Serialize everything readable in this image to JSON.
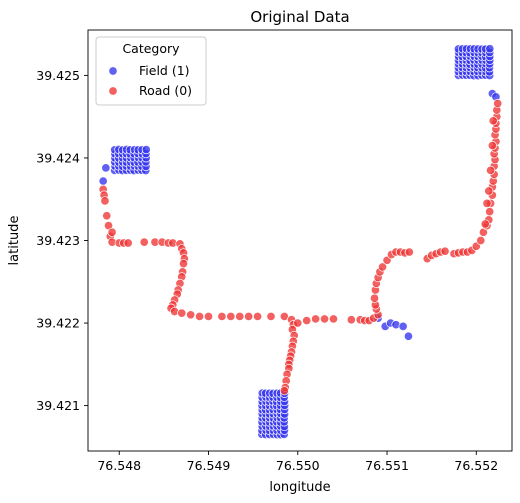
{
  "chart_data": {
    "type": "scatter",
    "title": "Original Data",
    "xlabel": "longitude",
    "ylabel": "latitude",
    "xlim": [
      76.54765,
      76.5524
    ],
    "ylim": [
      39.42045,
      39.42555
    ],
    "xticks": [
      76.548,
      76.549,
      76.55,
      76.551,
      76.552
    ],
    "xtick_labels": [
      "76.548",
      "76.549",
      "76.550",
      "76.551",
      "76.552"
    ],
    "yticks": [
      39.421,
      39.422,
      39.423,
      39.424,
      39.425
    ],
    "ytick_labels": [
      "39.421",
      "39.422",
      "39.423",
      "39.424",
      "39.425"
    ],
    "grid": false,
    "legend": {
      "title": "Category",
      "placement": "top-left",
      "entries": [
        {
          "label": "Field (1)",
          "color": "#3333ee"
        },
        {
          "label": "Road (0)",
          "color": "#ee3333"
        }
      ]
    },
    "series": [
      {
        "name": "Field (1)",
        "color": "#3333ee",
        "clusters": [
          {
            "x_range": [
              76.5496,
              76.54985
            ],
            "y_range": [
              39.42065,
              39.42115
            ]
          },
          {
            "x_range": [
              76.54795,
              76.5483
            ],
            "y_range": [
              39.42385,
              39.4241
            ]
          },
          {
            "x_range": [
              76.5518,
              76.55215
            ],
            "y_range": [
              39.425,
              39.42532
            ]
          }
        ],
        "points": [
          [
            76.54785,
            39.42388
          ],
          [
            76.54782,
            39.42372
          ],
          [
            76.5509,
            39.42206
          ],
          [
            76.55098,
            39.42196
          ],
          [
            76.55104,
            39.422
          ],
          [
            76.5511,
            39.42198
          ],
          [
            76.55118,
            39.42196
          ],
          [
            76.55124,
            39.42184
          ],
          [
            76.55218,
            39.42478
          ],
          [
            76.55222,
            39.42474
          ]
        ]
      },
      {
        "name": "Road (0)",
        "color": "#ee3333",
        "points": [
          [
            76.54782,
            39.42362
          ],
          [
            76.54783,
            39.42355
          ],
          [
            76.54784,
            39.42348
          ],
          [
            76.54786,
            39.4233
          ],
          [
            76.54788,
            39.42318
          ],
          [
            76.5479,
            39.42305
          ],
          [
            76.54792,
            39.4231
          ],
          [
            76.54792,
            39.42298
          ],
          [
            76.548,
            39.42297
          ],
          [
            76.54805,
            39.42297
          ],
          [
            76.5481,
            39.42297
          ],
          [
            76.54828,
            39.42298
          ],
          [
            76.5484,
            39.42298
          ],
          [
            76.54848,
            39.42298
          ],
          [
            76.54855,
            39.42297
          ],
          [
            76.5486,
            39.42297
          ],
          [
            76.54868,
            39.42296
          ],
          [
            76.5487,
            39.4229
          ],
          [
            76.54872,
            39.42285
          ],
          [
            76.54873,
            39.42278
          ],
          [
            76.54872,
            39.42272
          ],
          [
            76.54871,
            39.42262
          ],
          [
            76.5487,
            39.42256
          ],
          [
            76.54868,
            39.42248
          ],
          [
            76.54866,
            39.4224
          ],
          [
            76.54865,
            39.42235
          ],
          [
            76.54862,
            39.42228
          ],
          [
            76.5486,
            39.42222
          ],
          [
            76.54858,
            39.42218
          ],
          [
            76.54862,
            39.42214
          ],
          [
            76.5487,
            39.42212
          ],
          [
            76.5488,
            39.4221
          ],
          [
            76.5489,
            39.42208
          ],
          [
            76.549,
            39.42208
          ],
          [
            76.54915,
            39.42208
          ],
          [
            76.54925,
            39.42208
          ],
          [
            76.54935,
            39.42208
          ],
          [
            76.54945,
            39.42208
          ],
          [
            76.54955,
            39.42208
          ],
          [
            76.5497,
            39.42208
          ],
          [
            76.54985,
            39.42208
          ],
          [
            76.54993,
            39.42204
          ],
          [
            76.54995,
            39.42198
          ],
          [
            76.54994,
            39.42192
          ],
          [
            76.54996,
            39.42185
          ],
          [
            76.54995,
            39.42178
          ],
          [
            76.54994,
            39.42172
          ],
          [
            76.54993,
            39.42165
          ],
          [
            76.54992,
            39.4216
          ],
          [
            76.54991,
            39.42155
          ],
          [
            76.5499,
            39.4215
          ],
          [
            76.5499,
            39.42145
          ],
          [
            76.54988,
            39.42138
          ],
          [
            76.54987,
            39.4213
          ],
          [
            76.54986,
            39.42122
          ],
          [
            76.54985,
            39.42118
          ],
          [
            76.55,
            39.422
          ],
          [
            76.5501,
            39.42203
          ],
          [
            76.5502,
            39.42205
          ],
          [
            76.5503,
            39.42205
          ],
          [
            76.5504,
            39.42205
          ],
          [
            76.5506,
            39.42204
          ],
          [
            76.5507,
            39.42204
          ],
          [
            76.55075,
            39.42203
          ],
          [
            76.5508,
            39.42203
          ],
          [
            76.55085,
            39.42206
          ],
          [
            76.5509,
            39.4221
          ],
          [
            76.55088,
            39.42217
          ],
          [
            76.55087,
            39.42222
          ],
          [
            76.55086,
            39.4223
          ],
          [
            76.55087,
            39.4224
          ],
          [
            76.55088,
            39.42248
          ],
          [
            76.5509,
            39.42255
          ],
          [
            76.55092,
            39.42262
          ],
          [
            76.55095,
            39.42268
          ],
          [
            76.551,
            39.42276
          ],
          [
            76.55105,
            39.42283
          ],
          [
            76.5511,
            39.42286
          ],
          [
            76.55115,
            39.42286
          ],
          [
            76.5512,
            39.42285
          ],
          [
            76.55125,
            39.42286
          ],
          [
            76.55145,
            39.42278
          ],
          [
            76.5515,
            39.42282
          ],
          [
            76.55155,
            39.42284
          ],
          [
            76.5516,
            39.42286
          ],
          [
            76.55165,
            39.42287
          ],
          [
            76.55175,
            39.42284
          ],
          [
            76.5518,
            39.42285
          ],
          [
            76.55185,
            39.42286
          ],
          [
            76.5519,
            39.42286
          ],
          [
            76.55195,
            39.42288
          ],
          [
            76.552,
            39.42293
          ],
          [
            76.55205,
            39.423
          ],
          [
            76.55208,
            39.4231
          ],
          [
            76.55212,
            39.42318
          ],
          [
            76.55214,
            39.42325
          ],
          [
            76.55215,
            39.42335
          ],
          [
            76.55216,
            39.42345
          ],
          [
            76.55218,
            39.42355
          ],
          [
            76.55218,
            39.42365
          ],
          [
            76.55219,
            39.42372
          ],
          [
            76.5522,
            39.4238
          ],
          [
            76.5522,
            39.4239
          ],
          [
            76.55221,
            39.42398
          ],
          [
            76.5522,
            39.42405
          ],
          [
            76.55221,
            39.42412
          ],
          [
            76.55222,
            39.4242
          ],
          [
            76.55221,
            39.42428
          ],
          [
            76.55222,
            39.42435
          ],
          [
            76.55222,
            39.42442
          ],
          [
            76.55223,
            39.4245
          ],
          [
            76.55223,
            39.42458
          ],
          [
            76.55224,
            39.42466
          ],
          [
            76.5521,
            39.4232
          ],
          [
            76.55214,
            39.4236
          ],
          [
            76.55216,
            39.42385
          ],
          [
            76.55218,
            39.42415
          ],
          [
            76.55219,
            39.42445
          ],
          [
            76.55212,
            39.42345
          ]
        ]
      }
    ]
  }
}
